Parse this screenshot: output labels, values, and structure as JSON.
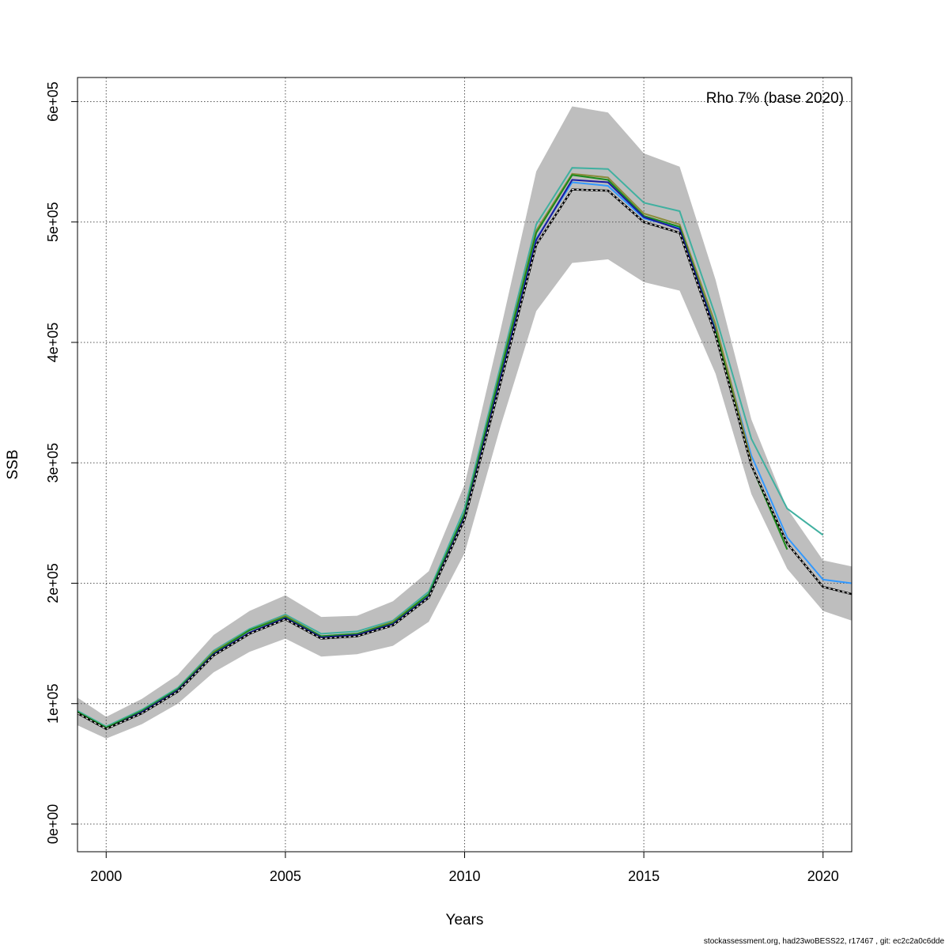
{
  "chart_data": {
    "type": "line",
    "title": "",
    "xlabel": "Years",
    "ylabel": "SSB",
    "annotation": "Rho 7% (base 2020)",
    "xlim": [
      1999.2,
      2020.8
    ],
    "ylim": [
      -23000,
      620000
    ],
    "grid": true,
    "x_ticks": [
      2000,
      2005,
      2010,
      2015,
      2020
    ],
    "x_tick_labels": [
      "2000",
      "2005",
      "2010",
      "2015",
      "2020"
    ],
    "y_ticks": [
      0,
      100000,
      200000,
      300000,
      400000,
      500000,
      600000
    ],
    "y_tick_labels": [
      "0e+00",
      "1e+05",
      "2e+05",
      "3e+05",
      "4e+05",
      "5e+05",
      "6e+05"
    ],
    "confidence_band": {
      "color": "#bebebe",
      "x": [
        1999.2,
        2000,
        2001,
        2002,
        2003,
        2004,
        2005,
        2006,
        2007,
        2008,
        2009,
        2010,
        2011,
        2012,
        2013,
        2014,
        2015,
        2016,
        2017,
        2018,
        2019,
        2020,
        2020.8
      ],
      "upper": [
        105000,
        89000,
        104000,
        124000,
        157000,
        177000,
        190000,
        172000,
        173000,
        185000,
        210000,
        282000,
        410000,
        542000,
        596000,
        591000,
        557000,
        546000,
        452000,
        336000,
        262000,
        219000,
        214000
      ],
      "lower": [
        82000,
        71000,
        83000,
        100000,
        126000,
        143000,
        154000,
        139000,
        141000,
        148000,
        168000,
        225000,
        330000,
        426000,
        466000,
        469000,
        450000,
        443000,
        374000,
        274000,
        212000,
        177000,
        169000
      ]
    },
    "series": [
      {
        "color": "#40b0a0",
        "x": [
          1999.2,
          2000,
          2001,
          2002,
          2003,
          2004,
          2005,
          2006,
          2007,
          2008,
          2009,
          2010,
          2011,
          2012,
          2013,
          2014,
          2015,
          2016,
          2017,
          2018,
          2019,
          2020
        ],
        "values": [
          94000,
          81000,
          95000,
          113000,
          144000,
          162000,
          174000,
          158000,
          160000,
          169000,
          193000,
          262000,
          380000,
          498000,
          545000,
          544000,
          516000,
          509000,
          422000,
          320000,
          262000,
          240000
        ]
      },
      {
        "color": "#3399ff",
        "x": [
          1999.2,
          2000,
          2001,
          2002,
          2003,
          2004,
          2005,
          2006,
          2007,
          2008,
          2009,
          2010,
          2011,
          2012,
          2013,
          2014,
          2015,
          2016,
          2017,
          2018,
          2019,
          2020,
          2020.8
        ],
        "values": [
          92000,
          79000,
          93000,
          111000,
          141000,
          159000,
          171000,
          155000,
          157000,
          166000,
          190000,
          256000,
          372000,
          486000,
          533000,
          530000,
          503000,
          495000,
          412000,
          306000,
          238000,
          203000,
          200000
        ]
      },
      {
        "color": "#8b8b3a",
        "x": [
          1999.2,
          2000,
          2001,
          2002,
          2003,
          2004,
          2005,
          2006,
          2007,
          2008,
          2009,
          2010,
          2011,
          2012,
          2013,
          2014,
          2015,
          2016,
          2017,
          2018
        ],
        "values": [
          93000,
          80000,
          94000,
          112000,
          143000,
          161000,
          173000,
          156000,
          158000,
          168000,
          191000,
          258000,
          376000,
          493000,
          540000,
          537000,
          507000,
          498000,
          415000,
          302000
        ]
      },
      {
        "color": "#1a8a1a",
        "x": [
          1999.2,
          2000,
          2001,
          2002,
          2003,
          2004,
          2005,
          2006,
          2007,
          2008,
          2009,
          2010,
          2011,
          2012,
          2013,
          2014,
          2015,
          2016,
          2017,
          2018,
          2019
        ],
        "values": [
          93000,
          80000,
          94000,
          112000,
          142000,
          161000,
          172000,
          156000,
          158000,
          167000,
          191000,
          258000,
          375000,
          491000,
          539000,
          535000,
          505000,
          496000,
          410000,
          298000,
          228000
        ]
      },
      {
        "color": "#1a1aa0",
        "x": [
          1999.2,
          2000,
          2001,
          2002,
          2003,
          2004,
          2005,
          2006,
          2007,
          2008,
          2009,
          2010,
          2011,
          2012,
          2013,
          2014,
          2015,
          2016,
          2017
        ],
        "values": [
          92000,
          79000,
          93000,
          111000,
          141000,
          159000,
          171000,
          155000,
          157000,
          166000,
          189000,
          255000,
          370000,
          485000,
          535000,
          533000,
          504000,
          494000,
          409000
        ]
      },
      {
        "color": "#000000",
        "dashed": true,
        "x": [
          1999.2,
          2000,
          2001,
          2002,
          2003,
          2004,
          2005,
          2006,
          2007,
          2008,
          2009,
          2010,
          2011,
          2012,
          2013,
          2014,
          2015,
          2016,
          2017,
          2018,
          2019,
          2020,
          2020.8
        ],
        "values": [
          92000,
          79000,
          92000,
          110000,
          140000,
          158000,
          170000,
          154000,
          156000,
          165000,
          188000,
          253000,
          366000,
          481000,
          527000,
          526000,
          500000,
          491000,
          406000,
          298000,
          233000,
          197000,
          191000
        ]
      }
    ]
  },
  "footer": {
    "text": "stockassessment.org, had23woBESS22, r17467 , git: ec2c2a0c6dde"
  }
}
